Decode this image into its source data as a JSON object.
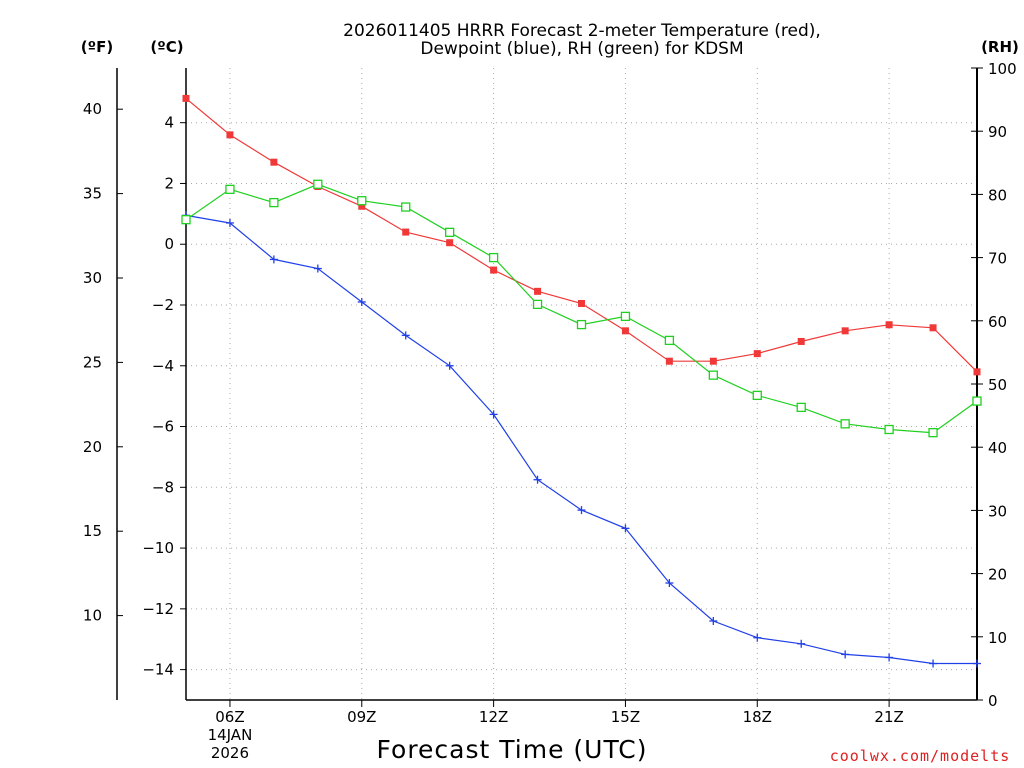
{
  "chart_data": {
    "type": "line",
    "title_line1": "2026011405 HRRR Forecast 2-meter Temperature (red),",
    "title_line2": "Dewpoint (blue), RH (green) for KDSM",
    "xlabel": "Forecast Time (UTC)",
    "credit": "coolwx.com/modelts",
    "hours": [
      5,
      6,
      7,
      8,
      9,
      10,
      11,
      12,
      13,
      14,
      15,
      16,
      17,
      18,
      19,
      20,
      21,
      22,
      23
    ],
    "xlim": [
      5,
      23
    ],
    "x_ticks": [
      {
        "hour": 6,
        "label": "06Z",
        "sub1": "14JAN",
        "sub2": "2026"
      },
      {
        "hour": 9,
        "label": "09Z",
        "sub1": "",
        "sub2": ""
      },
      {
        "hour": 12,
        "label": "12Z",
        "sub1": "",
        "sub2": ""
      },
      {
        "hour": 15,
        "label": "15Z",
        "sub1": "",
        "sub2": ""
      },
      {
        "hour": 18,
        "label": "18Z",
        "sub1": "",
        "sub2": ""
      },
      {
        "hour": 21,
        "label": "21Z",
        "sub1": "",
        "sub2": ""
      }
    ],
    "celsius_axis": {
      "unit_label": "(ºC)",
      "ylim": [
        -15,
        5.8
      ],
      "ticks": [
        4,
        2,
        0,
        -2,
        -4,
        -6,
        -8,
        -10,
        -12,
        -14
      ],
      "tick_labels": [
        "4",
        "2",
        "0",
        "−2",
        "−4",
        "−6",
        "−8",
        "−10",
        "−12",
        "−14"
      ]
    },
    "fahrenheit_axis": {
      "unit_label": "(ºF)",
      "ticks": [
        40,
        35,
        30,
        25,
        20,
        15,
        10
      ],
      "tick_labels": [
        "40",
        "35",
        "30",
        "25",
        "20",
        "15",
        "10"
      ]
    },
    "rh_axis": {
      "unit_label": "(RH)",
      "ylim": [
        0,
        100
      ],
      "ticks": [
        100,
        90,
        80,
        70,
        60,
        50,
        40,
        30,
        20,
        10,
        0
      ],
      "tick_labels": [
        "100",
        "90",
        "80",
        "70",
        "60",
        "50",
        "40",
        "30",
        "20",
        "10",
        "0"
      ]
    },
    "series": [
      {
        "name": "Temperature",
        "unit": "C",
        "color": "#f03838",
        "marker": "filled-square",
        "values": [
          4.8,
          3.6,
          2.7,
          1.9,
          1.25,
          0.4,
          0.05,
          -0.85,
          -1.55,
          -1.95,
          -2.85,
          -3.85,
          -3.85,
          -3.6,
          -3.2,
          -2.85,
          -2.65,
          -2.75,
          -4.2
        ]
      },
      {
        "name": "Dewpoint",
        "unit": "C",
        "color": "#2040e8",
        "marker": "plus",
        "values": [
          0.95,
          0.7,
          -0.5,
          -0.8,
          -1.9,
          -3.0,
          -4.0,
          -5.6,
          -7.75,
          -8.75,
          -9.35,
          -11.15,
          -12.4,
          -12.95,
          -13.15,
          -13.5,
          -13.6,
          -13.8,
          -13.8
        ]
      },
      {
        "name": "RH",
        "unit": "%",
        "color": "#20d020",
        "marker": "open-square",
        "values": [
          76,
          80.8,
          78.7,
          81.6,
          79,
          78,
          74,
          70,
          62.6,
          59.4,
          60.7,
          56.9,
          51.4,
          48.2,
          46.3,
          43.7,
          42.8,
          42.3,
          47.3
        ]
      }
    ]
  }
}
